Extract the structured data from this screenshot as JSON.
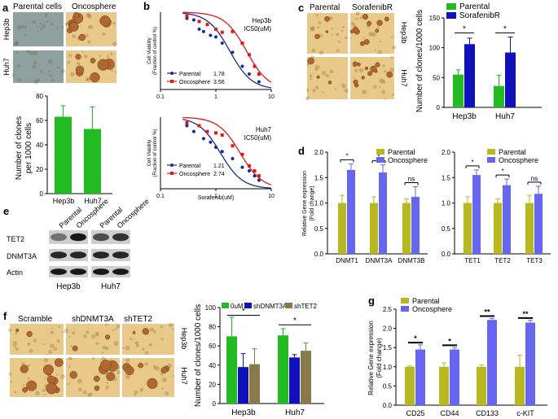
{
  "colors": {
    "green": "#22bb22",
    "blue": "#1111bb",
    "olive": "#b8b820",
    "violet": "#6666ee",
    "brown": "#8a7a4a",
    "red": "#e01818",
    "navy": "#1a2a9a",
    "micro_bg": "#e9c98a",
    "micro_bg_gray": "#8fa0a0",
    "sphere": "#b06830"
  },
  "panels": {
    "a": {
      "letter": "a",
      "col_labels": [
        "Parental cells",
        "Oncosphere"
      ],
      "row_labels": [
        "Hep3b",
        "Huh7"
      ],
      "chart_data": {
        "type": "bar",
        "categories": [
          "Hep3b",
          "Huh7"
        ],
        "values": [
          63,
          53
        ],
        "errors": [
          9,
          18
        ],
        "ylabel": "Number of clones per 1000 cells",
        "ylabel_lines": [
          "Number of clones",
          "per 1000 cells"
        ],
        "ylim": [
          0,
          80
        ],
        "yticks": [
          "0",
          "20",
          "40",
          "60",
          "80"
        ]
      }
    },
    "b": {
      "letter": "b",
      "chart_data": [
        {
          "type": "scatter",
          "title": "Hep3b IC50(uM)",
          "title_lines": [
            "Hep3b",
            "IC50(uM)"
          ],
          "ylabel_lines": [
            "Cell Viability",
            "(Fraction of control %)"
          ],
          "xticks": [
            "0.1",
            "1",
            "10"
          ],
          "series": [
            {
              "name": "Parental",
              "ic50": "1.78",
              "x": [
                0.3,
                0.4,
                0.5,
                0.6,
                0.8,
                1.0,
                1.3,
                2.0,
                3.0,
                4.0,
                6.0
              ],
              "y": [
                92,
                90,
                78,
                75,
                70,
                68,
                60,
                48,
                30,
                20,
                10
              ]
            },
            {
              "name": "Oncosphere",
              "ic50": "3.56",
              "x": [
                0.3,
                0.5,
                0.7,
                1.0,
                1.3,
                2.0,
                3.0,
                4.0,
                5.0,
                6.0
              ],
              "y": [
                95,
                88,
                84,
                78,
                74,
                75,
                60,
                45,
                30,
                20
              ]
            }
          ]
        },
        {
          "type": "scatter",
          "title": "Huh7 IC50(uM)",
          "title_lines": [
            "Huh7",
            "IC50(uM)"
          ],
          "xlabel": "Sorafenib(uM)",
          "ylabel_lines": [
            "Cell Viability",
            "(Fraction of control %)"
          ],
          "xticks": [
            "0.1",
            "1",
            "10"
          ],
          "series": [
            {
              "name": "Parental",
              "ic50": "1.21",
              "x": [
                0.3,
                0.4,
                0.6,
                0.8,
                1.0,
                1.3,
                2.0,
                3.0,
                4.0,
                5.0,
                6.0
              ],
              "y": [
                88,
                80,
                70,
                65,
                58,
                52,
                42,
                30,
                25,
                18,
                12
              ]
            },
            {
              "name": "Oncosphere",
              "ic50": "2.74",
              "x": [
                0.3,
                0.5,
                0.7,
                1.0,
                1.3,
                2.0,
                3.0,
                4.0,
                5.0,
                6.0
              ],
              "y": [
                92,
                88,
                80,
                78,
                75,
                60,
                48,
                32,
                25,
                18
              ]
            }
          ]
        }
      ]
    },
    "c": {
      "letter": "c",
      "col_labels": [
        "Parental",
        "SorafenibR"
      ],
      "row_labels": [
        "Hep3b",
        "Huh7"
      ],
      "sig": "*",
      "chart_data": {
        "type": "bar",
        "categories": [
          "Hep3b",
          "Huh7"
        ],
        "series": [
          {
            "name": "Parental",
            "values": [
              55,
              36
            ],
            "errors": [
              8,
              18
            ]
          },
          {
            "name": "SorafenibR",
            "values": [
              106,
              92
            ],
            "errors": [
              10,
              26
            ]
          }
        ],
        "ylabel": "Number of clones/1000 cells",
        "ylim": [
          0,
          150
        ],
        "yticks": [
          "0",
          "50",
          "100",
          "150"
        ]
      }
    },
    "d": {
      "letter": "d",
      "chart_data": [
        {
          "type": "bar",
          "categories": [
            "DNMT1",
            "DNMT3A",
            "DNMT3B"
          ],
          "series": [
            {
              "name": "Parental",
              "values": [
                1.0,
                1.0,
                1.0
              ],
              "errors": [
                0.15,
                0.12,
                0.08
              ]
            },
            {
              "name": "Oncosphere",
              "values": [
                1.65,
                1.6,
                1.12
              ],
              "errors": [
                0.12,
                0.15,
                0.2
              ]
            }
          ],
          "sig": [
            "*",
            "*",
            "ns"
          ],
          "ylabel_lines": [
            "Relative Gene expression",
            "(Fold change)"
          ],
          "ylim": [
            0,
            2.0
          ],
          "yticks": [
            "0.0",
            "0.5",
            "1.0",
            "1.5",
            "2.0"
          ]
        },
        {
          "type": "bar",
          "categories": [
            "TET1",
            "TET2",
            "TET3"
          ],
          "series": [
            {
              "name": "Parental",
              "values": [
                1.0,
                1.0,
                1.0
              ],
              "errors": [
                0.12,
                0.08,
                0.15
              ]
            },
            {
              "name": "Oncosphere",
              "values": [
                1.55,
                1.35,
                1.18
              ],
              "errors": [
                0.1,
                0.12,
                0.15
              ]
            }
          ],
          "sig": [
            "*",
            "*",
            "ns"
          ],
          "ylim": [
            0,
            2.0
          ],
          "yticks": [
            "0.0",
            "0.5",
            "1.0",
            "1.5",
            "2.0"
          ]
        }
      ]
    },
    "e": {
      "letter": "e",
      "lane_labels": [
        "Parental",
        "Oncosphere",
        "Parental",
        "Oncosphere"
      ],
      "proteins": [
        "TET2",
        "DNMT3A",
        "Actin"
      ],
      "cell_lines": [
        "Hep3b",
        "Huh7"
      ]
    },
    "f": {
      "letter": "f",
      "col_labels": [
        "Scramble",
        "shDNMT3A",
        "shTET2"
      ],
      "row_labels": [
        "Hep3b",
        "Huh7"
      ],
      "sig": "*",
      "chart_data": {
        "type": "bar",
        "categories": [
          "Hep3b",
          "Huh7"
        ],
        "series": [
          {
            "name": "0uM",
            "values": [
              70,
              71
            ],
            "errors": [
              20,
              7
            ]
          },
          {
            "name": "shDNMT3A",
            "values": [
              38,
              48
            ],
            "errors": [
              14,
              3
            ]
          },
          {
            "name": "shTET2",
            "values": [
              41,
              55
            ],
            "errors": [
              16,
              8
            ]
          }
        ],
        "ylabel": "Number of clones/1000 cells",
        "ylim": [
          0,
          100
        ],
        "yticks": [
          "0",
          "20",
          "40",
          "60",
          "80",
          "100"
        ]
      }
    },
    "g": {
      "letter": "g",
      "chart_data": {
        "type": "bar",
        "categories": [
          "CD25",
          "CD44",
          "CD133",
          "c-KIT"
        ],
        "series": [
          {
            "name": "Parental",
            "values": [
              1.0,
              1.0,
              1.0,
              1.0
            ],
            "errors": [
              0.02,
              0.1,
              0.05,
              0.3
            ]
          },
          {
            "name": "Oncosphere",
            "values": [
              1.45,
              1.45,
              2.22,
              2.15
            ],
            "errors": [
              0.12,
              0.05,
              0.04,
              0.06
            ]
          }
        ],
        "sig": [
          "*",
          "*",
          "**",
          "**"
        ],
        "ylabel_lines": [
          "Relative Gene expression",
          "(Fold change)"
        ],
        "ylim": [
          0,
          2.5
        ],
        "yticks": [
          "0.0",
          "0.5",
          "1.0",
          "1.5",
          "2.0",
          "2.5"
        ]
      }
    }
  }
}
